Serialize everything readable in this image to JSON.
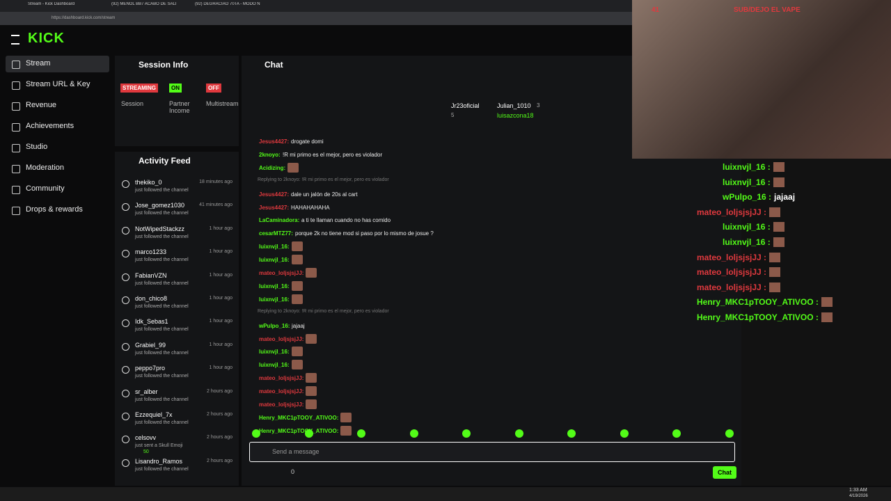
{
  "browser": {
    "tabs": [
      "Stream - Kick Dashboard",
      "(92) MENOL BB7 ACABO DE SALI",
      "(92) DEGRACIAO 70TA - MODO N"
    ],
    "url": "https://dashboard.kick.com/stream"
  },
  "sidebar": {
    "logo": "KICK",
    "items": [
      "Stream",
      "Stream URL & Key",
      "Revenue",
      "Achievements",
      "Studio",
      "Moderation",
      "Community",
      "Drops & rewards"
    ]
  },
  "session": {
    "title": "Session Info",
    "badges": [
      {
        "label": "STREAMING",
        "caption": "Session"
      },
      {
        "label": "ON",
        "caption": "Partner Income"
      },
      {
        "label": "OFF",
        "caption": "Multistream"
      }
    ]
  },
  "activity": {
    "title": "Activity Feed",
    "items": [
      {
        "name": "thekiko_0",
        "action": "just followed the channel",
        "time": "18 minutes ago"
      },
      {
        "name": "Jose_gomez1030",
        "action": "just followed the channel",
        "time": "41 minutes ago"
      },
      {
        "name": "NotWipedStackzz",
        "action": "just followed the channel",
        "time": "1 hour ago"
      },
      {
        "name": "marco1233",
        "action": "just followed the channel",
        "time": "1 hour ago"
      },
      {
        "name": "FabianVZN",
        "action": "just followed the channel",
        "time": "1 hour ago"
      },
      {
        "name": "don_chico8",
        "action": "just followed the channel",
        "time": "1 hour ago"
      },
      {
        "name": "Idk_Sebas1",
        "action": "just followed the channel",
        "time": "1 hour ago"
      },
      {
        "name": "Grabiel_99",
        "action": "just followed the channel",
        "time": "1 hour ago"
      },
      {
        "name": "peppo7pro",
        "action": "just followed the channel",
        "time": "1 hour ago"
      },
      {
        "name": "sr_alber",
        "action": "just followed the channel",
        "time": "2 hours ago"
      },
      {
        "name": "Ezzequiel_7x",
        "action": "just followed the channel",
        "time": "2 hours ago"
      },
      {
        "name": "celsovv",
        "action": "just sent a Skull Emoji",
        "time": "2 hours ago",
        "amount": "50"
      },
      {
        "name": "Lisandro_Ramos",
        "action": "just followed the channel",
        "time": "2 hours ago"
      }
    ]
  },
  "chat": {
    "title": "Chat",
    "pinned": [
      {
        "name": "Jr23oficial",
        "count": "5"
      },
      {
        "name": "Julian_1010",
        "count": "3"
      },
      {
        "name": "luisazcona18"
      }
    ],
    "messages": [
      {
        "user": "Jesus4427:",
        "text": "drogate domi",
        "color": "#e0393e"
      },
      {
        "user": "2knoyo:",
        "text": "!R mi primo es el mejor, pero es violador",
        "color": "#53fc18"
      },
      {
        "user": "Acidizing:",
        "color": "#53fc18",
        "emote": true
      },
      {
        "reply": "Replying to 2knoyo: !R mi primo es el mejor, pero es violador"
      },
      {
        "user": "Jesus4427:",
        "text": "dale un jalón de 20s al cart",
        "color": "#e0393e"
      },
      {
        "user": "Jesus4427:",
        "text": "HAHAHAHAHA",
        "color": "#e0393e"
      },
      {
        "user": "LaCaminadora:",
        "text": "a ti te llaman cuando no has comido",
        "color": "#53fc18"
      },
      {
        "user": "cesarMTZ77:",
        "text": "porque 2k no tiene mod si paso por lo mismo de josue ?",
        "color": "#53fc18"
      },
      {
        "user": "luixnvjl_16:",
        "color": "#53fc18",
        "emote": true
      },
      {
        "user": "luixnvjl_16:",
        "color": "#53fc18",
        "emote": true
      },
      {
        "user": "mateo_loljsjsjJJ:",
        "color": "#e0393e",
        "emote": true
      },
      {
        "user": "luixnvjl_16:",
        "color": "#53fc18",
        "emote": true
      },
      {
        "user": "luixnvjl_16:",
        "color": "#53fc18",
        "emote": true
      },
      {
        "reply": "Replying to 2knoyo: !R mi primo es el mejor, pero es violador"
      },
      {
        "user": "wPulpo_16:",
        "text": "jajaaj",
        "color": "#53fc18"
      },
      {
        "user": "mateo_loljsjsjJJ:",
        "color": "#e0393e",
        "emote": true
      },
      {
        "user": "luixnvjl_16:",
        "color": "#53fc18",
        "emote": true
      },
      {
        "user": "luixnvjl_16:",
        "color": "#53fc18",
        "emote": true
      },
      {
        "user": "mateo_loljsjsjJJ:",
        "color": "#e0393e",
        "emote": true
      },
      {
        "user": "mateo_loljsjsjJJ:",
        "color": "#e0393e",
        "emote": true
      },
      {
        "user": "mateo_loljsjsjJJ:",
        "color": "#e0393e",
        "emote": true
      },
      {
        "user": "Henry_MKC1pTOOY_ATIVOO:",
        "color": "#53fc18",
        "emote": true
      },
      {
        "user": "Henry_MKC1pTOOY_ATIVOO:",
        "color": "#53fc18",
        "emote": true
      }
    ],
    "placeholder": "Send a message",
    "points": "0",
    "send": "Chat"
  },
  "overlay": {
    "viewers": "41",
    "banner": "SUB/DEJO EL VAPE",
    "messages": [
      {
        "user": "luixnvjl_16 :",
        "color": "#53fc18"
      },
      {
        "user": "luixnvjl_16 :",
        "color": "#53fc18"
      },
      {
        "user": "wPulpo_16 :",
        "text": "jajaaj",
        "color": "#53fc18"
      },
      {
        "user": "mateo_loljsjsjJJ :",
        "color": "#e0393e"
      },
      {
        "user": "luixnvjl_16 :",
        "color": "#53fc18"
      },
      {
        "user": "luixnvjl_16 :",
        "color": "#53fc18"
      },
      {
        "user": "mateo_loljsjsjJJ :",
        "color": "#e0393e"
      },
      {
        "user": "mateo_loljsjsjJJ :",
        "color": "#e0393e"
      },
      {
        "user": "mateo_loljsjsjJJ :",
        "color": "#e0393e"
      },
      {
        "user": "Henry_MKC1pTOOY_ATIVOO :",
        "color": "#53fc18"
      },
      {
        "user": "Henry_MKC1pTOOY_ATIVOO :",
        "color": "#53fc18"
      }
    ]
  },
  "taskbar": {
    "time": "1:33 AM",
    "date": "4/19/2026"
  }
}
